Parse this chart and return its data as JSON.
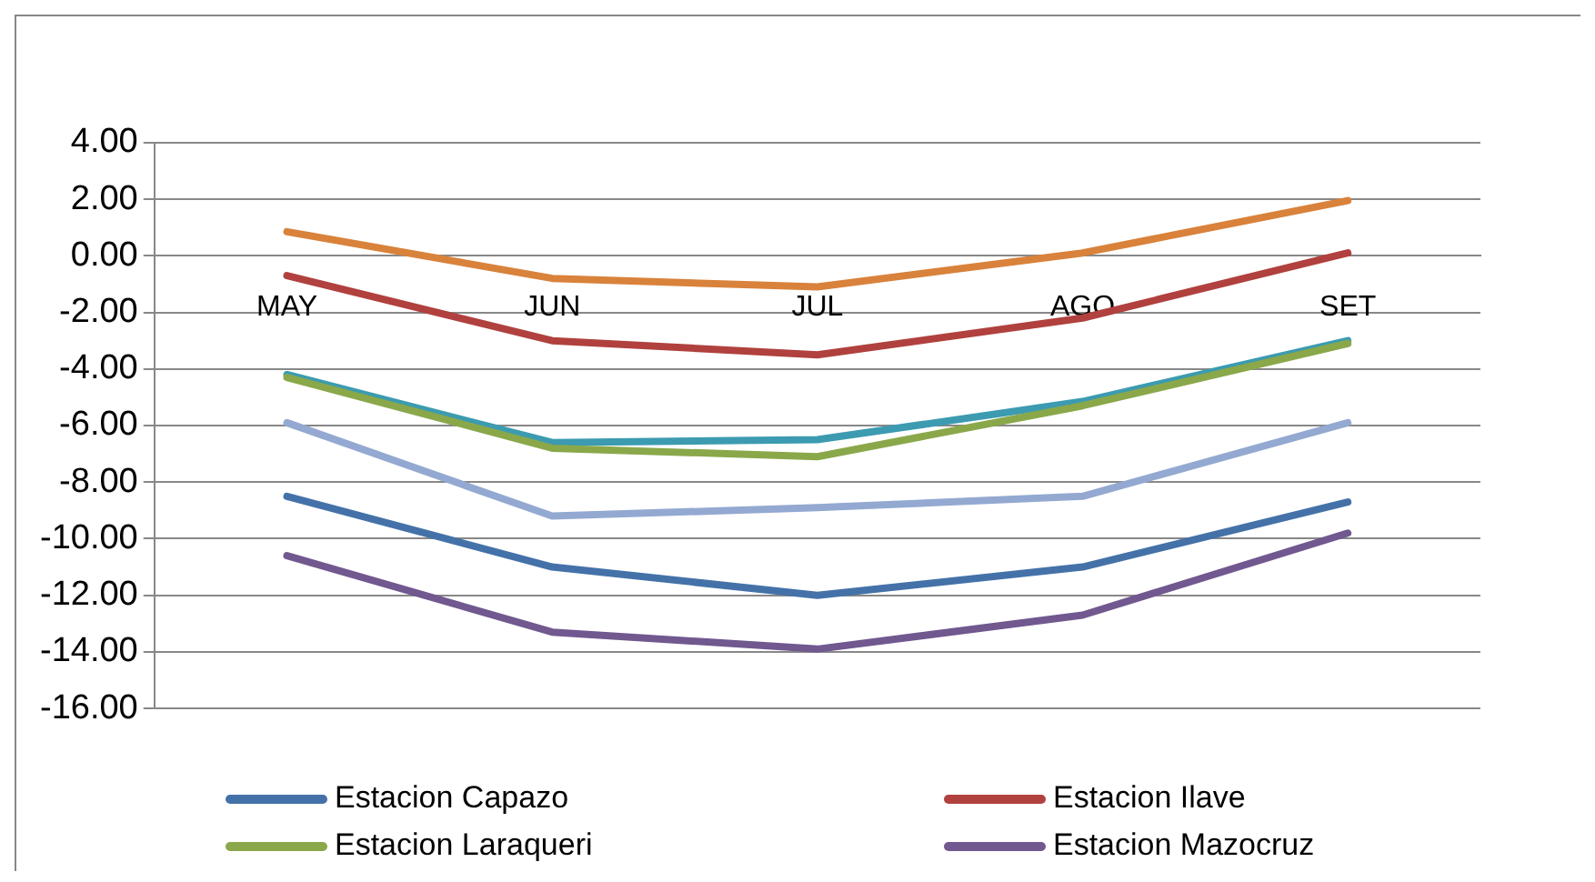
{
  "chart_data": {
    "type": "line",
    "categories": [
      "MAY",
      "JUN",
      "JUL",
      "AGO",
      "SET"
    ],
    "series": [
      {
        "name": "Estacion Capazo",
        "color": "#4472a8",
        "values": [
          -8.5,
          -11.0,
          -12.0,
          -11.0,
          -8.7
        ]
      },
      {
        "name": "Estacion Ilave",
        "color": "#b0413e",
        "values": [
          -0.7,
          -3.0,
          -3.5,
          -2.2,
          0.1
        ]
      },
      {
        "name": "Estacion Laraqueri",
        "color": "#8aa84a",
        "values": [
          -4.3,
          -6.8,
          -7.1,
          -5.3,
          -3.1
        ]
      },
      {
        "name": "Estacion Mazocruz",
        "color": "#71588f",
        "values": [
          -10.6,
          -13.3,
          -13.9,
          -12.7,
          -9.8
        ]
      },
      {
        "color": "#d9823b",
        "values": [
          0.85,
          -0.8,
          -1.1,
          0.1,
          1.95
        ]
      },
      {
        "color": "#3c9bb0",
        "values": [
          -4.2,
          -6.6,
          -6.5,
          -5.15,
          -3.0
        ]
      },
      {
        "color": "#93a9d1",
        "values": [
          -5.9,
          -9.2,
          -8.9,
          -8.5,
          -5.9
        ]
      }
    ],
    "ylim": [
      -16,
      4
    ],
    "yticks": [
      {
        "value": -16,
        "label": "-16.00"
      },
      {
        "value": -14,
        "label": "-14.00"
      },
      {
        "value": -12,
        "label": "-12.00"
      },
      {
        "value": -10,
        "label": "-10.00"
      },
      {
        "value": -8,
        "label": "-8.00"
      },
      {
        "value": -6,
        "label": "-6.00"
      },
      {
        "value": -4,
        "label": "-4.00"
      },
      {
        "value": -2,
        "label": "-2.00"
      },
      {
        "value": 0,
        "label": "0.00"
      },
      {
        "value": 2,
        "label": "2.00"
      },
      {
        "value": 4,
        "label": "4.00"
      }
    ],
    "grid": "y",
    "legend": "bottom",
    "marker": "none",
    "line_style": "solid"
  }
}
